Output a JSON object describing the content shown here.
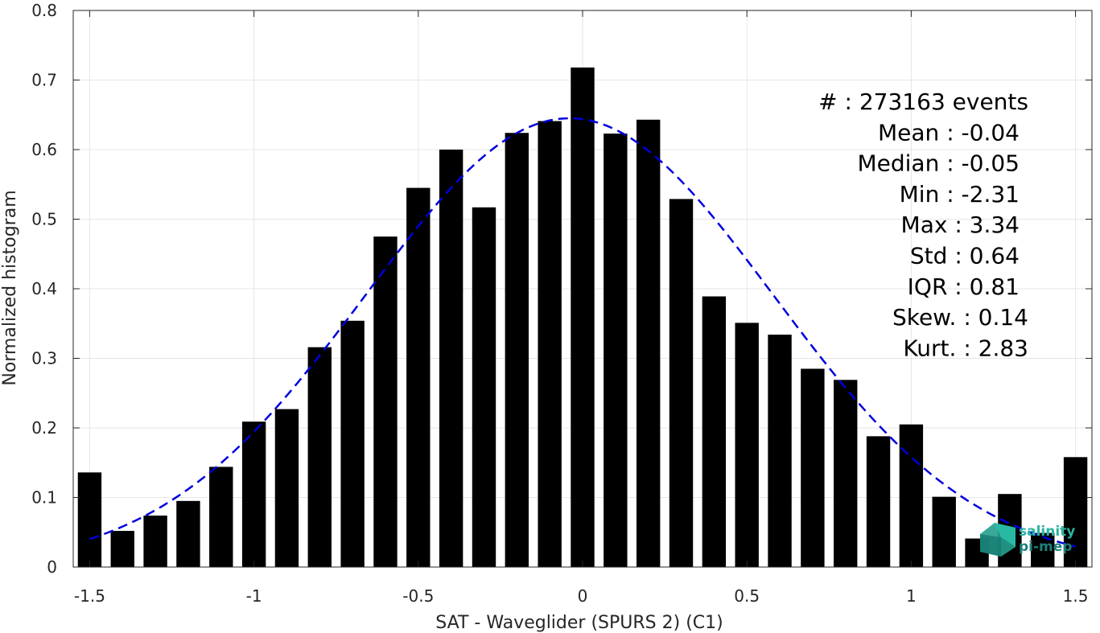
{
  "chart_data": {
    "type": "bar",
    "xlabel": "SAT - Waveglider (SPURS 2) (C1)",
    "ylabel": "Normalized histogram",
    "xlim": [
      -1.55,
      1.55
    ],
    "ylim": [
      0,
      0.8
    ],
    "xticks": [
      -1.5,
      -1,
      -0.5,
      0,
      0.5,
      1,
      1.5
    ],
    "xtick_labels": [
      "-1.5",
      "-1",
      "-0.5",
      "0",
      "0.5",
      "1",
      "1.5"
    ],
    "yticks": [
      0,
      0.1,
      0.2,
      0.3,
      0.4,
      0.5,
      0.6,
      0.7,
      0.8
    ],
    "ytick_labels": [
      "0",
      "0.1",
      "0.2",
      "0.3",
      "0.4",
      "0.5",
      "0.6",
      "0.7",
      "0.8"
    ],
    "grid": true,
    "bar_color": "#000000",
    "bar_width": 0.072,
    "x": [
      -1.5,
      -1.4,
      -1.3,
      -1.2,
      -1.1,
      -1.0,
      -0.9,
      -0.8,
      -0.7,
      -0.6,
      -0.5,
      -0.4,
      -0.3,
      -0.2,
      -0.1,
      0.0,
      0.1,
      0.2,
      0.3,
      0.4,
      0.5,
      0.6,
      0.7,
      0.8,
      0.9,
      1.0,
      1.1,
      1.2,
      1.3,
      1.4,
      1.5
    ],
    "values": [
      0.136,
      0.052,
      0.074,
      0.095,
      0.144,
      0.209,
      0.227,
      0.316,
      0.354,
      0.475,
      0.545,
      0.6,
      0.517,
      0.624,
      0.641,
      0.718,
      0.623,
      0.643,
      0.529,
      0.389,
      0.351,
      0.334,
      0.285,
      0.269,
      0.188,
      0.205,
      0.101,
      0.041,
      0.105,
      0.049,
      0.158
    ],
    "fit_curve": {
      "style": "dashed",
      "color": "#0000dd",
      "mean": -0.04,
      "std": 0.62,
      "peak": 0.645,
      "x_range": [
        -1.5,
        1.5
      ]
    },
    "stats": [
      "#  : 273163 events",
      "Mean : -0.04",
      "Median : -0.05",
      "Min : -2.31",
      "Max : 3.34",
      "Std : 0.64",
      "IQR : 0.81",
      "Skew. : 0.14",
      "Kurt. : 2.83"
    ],
    "logo": {
      "line1": "salinity",
      "line2": "pi-mep",
      "color1": "#2bb5a0",
      "color2": "#1e7f7a"
    }
  }
}
